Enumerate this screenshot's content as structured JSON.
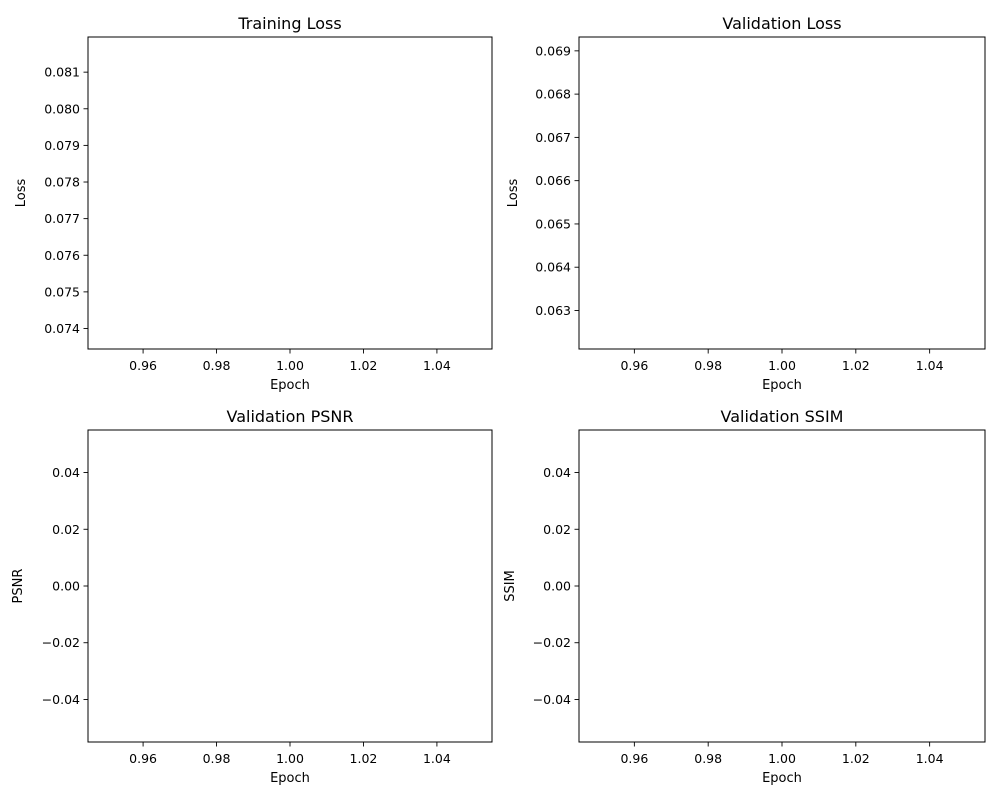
{
  "chart_data": [
    {
      "type": "line",
      "title": "Training Loss",
      "xlabel": "Epoch",
      "ylabel": "Loss",
      "xlim": [
        0.945,
        1.055
      ],
      "ylim": [
        0.07344,
        0.08196
      ],
      "xticks": [
        0.96,
        0.98,
        1.0,
        1.02,
        1.04
      ],
      "xtick_labels": [
        "0.96",
        "0.98",
        "1.00",
        "1.02",
        "1.04"
      ],
      "yticks": [
        0.074,
        0.075,
        0.076,
        0.077,
        0.078,
        0.079,
        0.08,
        0.081
      ],
      "ytick_labels": [
        "0.074",
        "0.075",
        "0.076",
        "0.077",
        "0.078",
        "0.079",
        "0.080",
        "0.081"
      ],
      "series": [
        {
          "x": [],
          "y": []
        }
      ],
      "grid": false
    },
    {
      "type": "line",
      "title": "Validation Loss",
      "xlabel": "Epoch",
      "ylabel": "Loss",
      "xlim": [
        0.945,
        1.055
      ],
      "ylim": [
        0.06211,
        0.06932
      ],
      "xticks": [
        0.96,
        0.98,
        1.0,
        1.02,
        1.04
      ],
      "xtick_labels": [
        "0.96",
        "0.98",
        "1.00",
        "1.02",
        "1.04"
      ],
      "yticks": [
        0.063,
        0.064,
        0.065,
        0.066,
        0.067,
        0.068,
        0.069
      ],
      "ytick_labels": [
        "0.063",
        "0.064",
        "0.065",
        "0.066",
        "0.067",
        "0.068",
        "0.069"
      ],
      "series": [
        {
          "x": [],
          "y": []
        }
      ],
      "grid": false
    },
    {
      "type": "line",
      "title": "Validation PSNR",
      "xlabel": "Epoch",
      "ylabel": "PSNR",
      "xlim": [
        0.945,
        1.055
      ],
      "ylim": [
        -0.055,
        0.055
      ],
      "xticks": [
        0.96,
        0.98,
        1.0,
        1.02,
        1.04
      ],
      "xtick_labels": [
        "0.96",
        "0.98",
        "1.00",
        "1.02",
        "1.04"
      ],
      "yticks": [
        -0.04,
        -0.02,
        0.0,
        0.02,
        0.04
      ],
      "ytick_labels": [
        "−0.04",
        "−0.02",
        "0.00",
        "0.02",
        "0.04"
      ],
      "series": [
        {
          "x": [],
          "y": []
        }
      ],
      "grid": false
    },
    {
      "type": "line",
      "title": "Validation SSIM",
      "xlabel": "Epoch",
      "ylabel": "SSIM",
      "xlim": [
        0.945,
        1.055
      ],
      "ylim": [
        -0.055,
        0.055
      ],
      "xticks": [
        0.96,
        0.98,
        1.0,
        1.02,
        1.04
      ],
      "xtick_labels": [
        "0.96",
        "0.98",
        "1.00",
        "1.02",
        "1.04"
      ],
      "yticks": [
        -0.04,
        -0.02,
        0.0,
        0.02,
        0.04
      ],
      "ytick_labels": [
        "−0.04",
        "−0.02",
        "0.00",
        "0.02",
        "0.04"
      ],
      "series": [
        {
          "x": [],
          "y": []
        }
      ],
      "grid": false
    }
  ],
  "colors": {
    "axes": "#000000",
    "background": "#ffffff",
    "text": "#000000",
    "line": "#1f77b4"
  }
}
